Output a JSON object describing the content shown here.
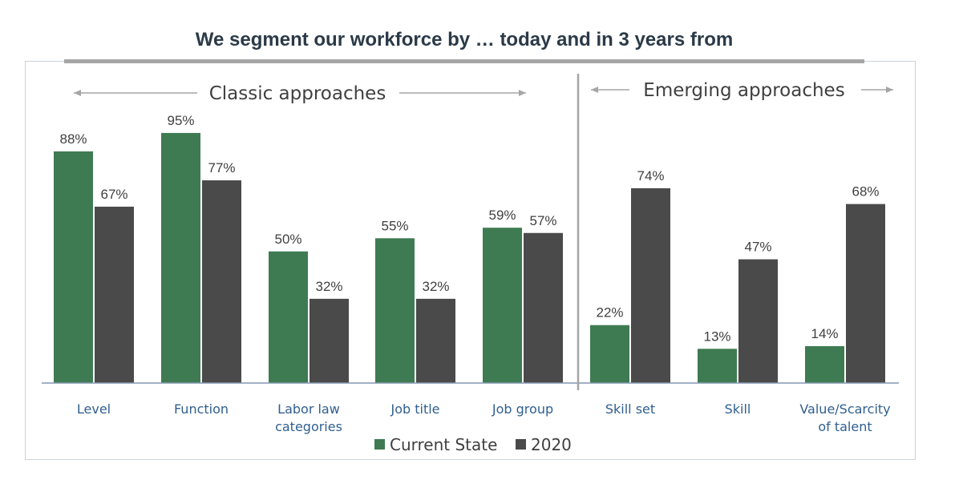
{
  "chart_data": {
    "type": "bar",
    "title": "We segment our workforce by … today and in 3 years from",
    "categories": [
      "Level",
      "Function",
      "Labor law categories",
      "Job title",
      "Job group",
      "Skill set",
      "Skill",
      "Value/Scarcity of talent"
    ],
    "category_lines": [
      [
        "Level"
      ],
      [
        "Function"
      ],
      [
        "Labor law",
        "categories"
      ],
      [
        "Job title"
      ],
      [
        "Job group"
      ],
      [
        "Skill set"
      ],
      [
        "Skill"
      ],
      [
        "Value/Scarcity",
        "of talent"
      ]
    ],
    "series": [
      {
        "name": "Current State",
        "color": "#3f7b52",
        "values": [
          88,
          95,
          50,
          55,
          59,
          22,
          13,
          14
        ]
      },
      {
        "name": "2020",
        "color": "#4a4a4a",
        "values": [
          67,
          77,
          32,
          32,
          57,
          74,
          47,
          68
        ]
      }
    ],
    "value_suffix": "%",
    "ylim": [
      0,
      100
    ],
    "groups": [
      {
        "label": "Classic approaches",
        "categories": [
          0,
          1,
          2,
          3,
          4
        ]
      },
      {
        "label": "Emerging approaches",
        "categories": [
          5,
          6,
          7
        ]
      }
    ],
    "legend_position": "bottom",
    "grid": false
  }
}
